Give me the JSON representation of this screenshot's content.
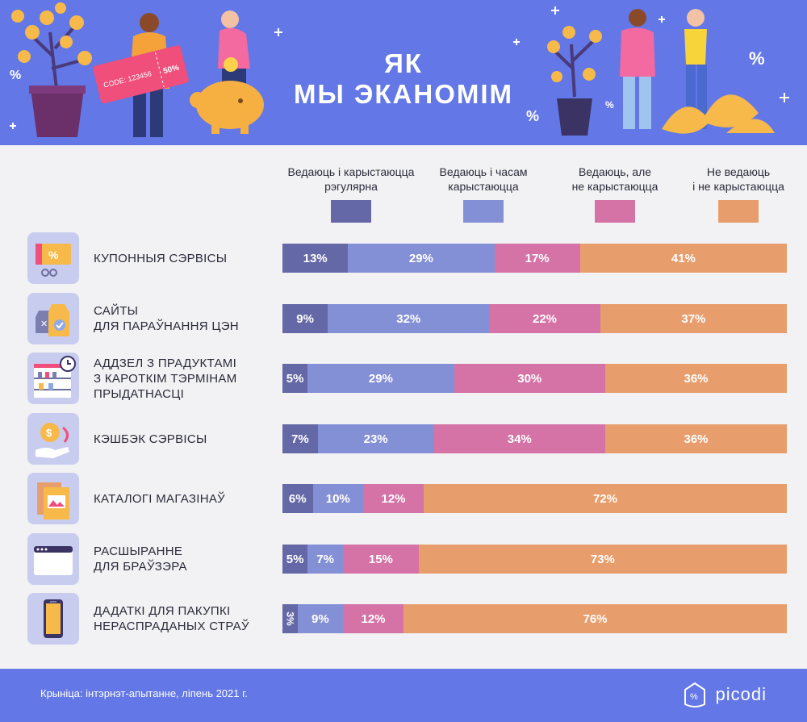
{
  "header": {
    "title_line1": "ЯК",
    "title_line2": "МЫ ЭКАНОМІМ",
    "coupon_text": "CODE: 123456",
    "coupon_percent": "50%"
  },
  "colors": {
    "header_bg": "#6377e6",
    "regular": "#6468a6",
    "sometimes": "#8490d6",
    "know_not_use": "#d573a6",
    "dont_know": "#e89e6c"
  },
  "chart_data": {
    "type": "bar",
    "orientation": "horizontal",
    "stacked": true,
    "unit": "%",
    "categories": [
      "КУПОННЫЯ СЭРВІСЫ",
      "САЙТЫ ДЛЯ ПАРАЎНАННЯ ЦЭН",
      "АДДЗЕЛ З ПРАДУКТАМІ З КАРОТКІМ ТЭРМІНАМ ПРЫДАТНАСЦІ",
      "КЭШБЭК СЭРВІСЫ",
      "КАТАЛОГІ МАГАЗІНАЎ",
      "РАСШЫРАННЕ ДЛЯ БРАЎЗЭРА",
      "ДАДАТКІ ДЛЯ ПАКУПКІ НЕРАСПРАДАНЫХ СТРАЎ"
    ],
    "series": [
      {
        "name": "Ведаюць і карыстаюцца рэгулярна",
        "color": "#6468a6",
        "values": [
          13,
          9,
          5,
          7,
          6,
          5,
          3
        ]
      },
      {
        "name": "Ведаюць і часам карыстаюцца",
        "color": "#8490d6",
        "values": [
          29,
          32,
          29,
          23,
          10,
          7,
          9
        ]
      },
      {
        "name": "Ведаюць, але не карыстаюцца",
        "color": "#d573a6",
        "values": [
          17,
          22,
          30,
          34,
          12,
          15,
          12
        ]
      },
      {
        "name": "Не ведаюць і не карыстаюцца",
        "color": "#e89e6c",
        "values": [
          41,
          37,
          36,
          36,
          72,
          73,
          76
        ]
      }
    ],
    "legend_position": "top"
  },
  "legend": [
    {
      "label_line1": "Ведаюць і карыстаюцца",
      "label_line2": "рэгулярна",
      "color": "#6468a6"
    },
    {
      "label_line1": "Ведаюць і часам",
      "label_line2": "карыстаюцца",
      "color": "#8490d6"
    },
    {
      "label_line1": "Ведаюць, але",
      "label_line2": "не карыстаюцца",
      "color": "#d573a6"
    },
    {
      "label_line1": "Не ведаюць",
      "label_line2": "і не карыстаюцца",
      "color": "#e89e6c"
    }
  ],
  "rows": [
    {
      "lines": [
        "КУПОННЫЯ СЭРВІСЫ"
      ],
      "icon": "coupon-icon"
    },
    {
      "lines": [
        "САЙТЫ",
        "ДЛЯ ПАРАЎНАННЯ ЦЭН"
      ],
      "icon": "price-tags-icon"
    },
    {
      "lines": [
        "АДДЗЕЛ З ПРАДУКТАМІ",
        "З КАРОТКІМ ТЭРМІНАМ",
        "ПРЫДАТНАСЦІ"
      ],
      "icon": "store-shelf-icon"
    },
    {
      "lines": [
        "КЭШБЭК СЭРВІСЫ"
      ],
      "icon": "cashback-icon"
    },
    {
      "lines": [
        "КАТАЛОГІ МАГАЗІНАЎ"
      ],
      "icon": "catalog-icon"
    },
    {
      "lines": [
        "РАСШЫРАННЕ",
        "ДЛЯ БРАЎЗЭРА"
      ],
      "icon": "browser-window-icon"
    },
    {
      "lines": [
        "ДАДАТКІ ДЛЯ ПАКУПКІ",
        "НЕРАСПРАДАНЫХ СТРАЎ"
      ],
      "icon": "smartphone-icon"
    }
  ],
  "footer": {
    "source": "Крыніца: інтэрнэт-апытанне, ліпень 2021 г.",
    "logo_text": "picodi"
  }
}
